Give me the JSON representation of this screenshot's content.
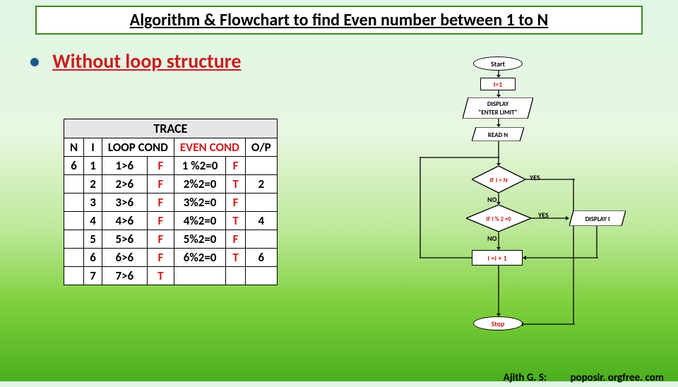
{
  "title": "Algorithm & Flowchart to find Even number between 1 to N",
  "subtitle": "Without loop structure",
  "trace": {
    "header": "TRACE",
    "cols": {
      "n": "N",
      "i": "I",
      "loop": "LOOP COND",
      "even": "EVEN COND",
      "op": "O/P"
    },
    "n_val": "6",
    "rows": [
      {
        "i": "1",
        "lc": "1>6",
        "lr": "F",
        "ec": "1 %2=0",
        "er": "F",
        "op": ""
      },
      {
        "i": "2",
        "lc": "2>6",
        "lr": "F",
        "ec": "2%2=0",
        "er": "T",
        "op": "2"
      },
      {
        "i": "3",
        "lc": "3>6",
        "lr": "F",
        "ec": "3%2=0",
        "er": "F",
        "op": ""
      },
      {
        "i": "4",
        "lc": "4>6",
        "lr": "F",
        "ec": "4%2=0",
        "er": "T",
        "op": "4"
      },
      {
        "i": "5",
        "lc": "5>6",
        "lr": "F",
        "ec": "5%2=0",
        "er": "F",
        "op": ""
      },
      {
        "i": "6",
        "lc": "6>6",
        "lr": "F",
        "ec": "6%2=0",
        "er": "T",
        "op": "6"
      },
      {
        "i": "7",
        "lc": "7>6",
        "lr": "T",
        "ec": "",
        "er": "",
        "op": ""
      }
    ]
  },
  "flow": {
    "start": "Start",
    "init": "I=1",
    "display": "DISPLAY\n\"ENTER LIMIT\"",
    "read": "READ N",
    "cond1": "IF I > N",
    "cond2": "IF I % 2 =0",
    "disp_i": "DISPLAY  I",
    "inc": "I =I + 1",
    "stop": "Stop",
    "yes": "YES",
    "no": "NO"
  },
  "footer": {
    "author": "Ajith G. S:",
    "site": "poposir. orgfree. com"
  }
}
